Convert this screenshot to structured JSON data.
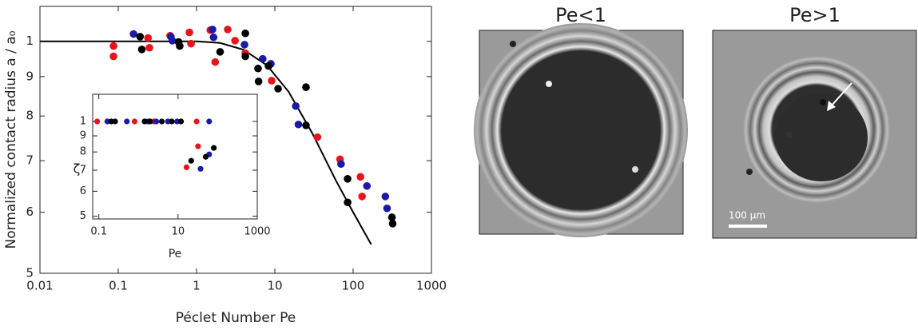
{
  "chart_data": [
    {
      "type": "scatter",
      "xlabel": "Péclet Number Pe",
      "ylabel": "Normalized contact radius a / a₀",
      "xscale": "log",
      "yscale": "log",
      "xlim": [
        0.01,
        1000
      ],
      "ylim": [
        0.5,
        1.11
      ],
      "xticks": [
        0.01,
        0.1,
        1,
        10,
        100,
        1000
      ],
      "yticks": [
        1,
        {
          "value": 0.9,
          "label": "9"
        },
        {
          "value": 0.8,
          "label": "8"
        },
        {
          "value": 0.7,
          "label": "7"
        },
        {
          "value": 0.6,
          "label": "6"
        },
        {
          "value": 0.5,
          "label": "5"
        }
      ],
      "series": [
        {
          "color": "#e8141b",
          "x": [
            0.087,
            0.087,
            0.24,
            0.25,
            0.46,
            0.81,
            0.85,
            1.5,
            1.73,
            2.5,
            3.1,
            4.2,
            9.1,
            35,
            68,
            124,
            130
          ],
          "values": [
            0.986,
            0.956,
            1.01,
            0.981,
            1.017,
            1.027,
            0.993,
            1.034,
            0.94,
            1.036,
            1.002,
            0.965,
            0.889,
            0.751,
            0.703,
            0.667,
            0.629
          ]
        },
        {
          "color": "#1a1aa8",
          "x": [
            0.157,
            0.47,
            0.49,
            1.6,
            1.65,
            4.1,
            7,
            8.9,
            18.5,
            20,
            70,
            150,
            258,
            271
          ],
          "values": [
            1.022,
            1.014,
            1.002,
            1.036,
            1.012,
            0.99,
            0.949,
            0.935,
            0.824,
            0.78,
            0.693,
            0.649,
            0.629,
            0.607
          ]
        },
        {
          "color": "#000000",
          "x": [
            0.19,
            0.2,
            0.59,
            0.61,
            2.0,
            4.2,
            4.2,
            6.1,
            6.2,
            8.3,
            11,
            25,
            25,
            85,
            85,
            313,
            320
          ],
          "values": [
            1.014,
            0.976,
            0.998,
            0.986,
            0.969,
            1.024,
            0.956,
            0.922,
            0.887,
            0.929,
            0.868,
            0.872,
            0.778,
            0.663,
            0.618,
            0.591,
            0.58
          ]
        }
      ],
      "curve": {
        "color": "#000000",
        "x": [
          0.01,
          1,
          2,
          4,
          8,
          15,
          30,
          60,
          100,
          170
        ],
        "values": [
          1,
          1,
          0.995,
          0.975,
          0.93,
          0.86,
          0.76,
          0.66,
          0.6,
          0.545
        ]
      }
    },
    {
      "type": "scatter",
      "xlabel": "Pe",
      "ylabel": "ζ",
      "xscale": "log",
      "yscale": "log",
      "xlim": [
        0.07,
        1000
      ],
      "ylim": [
        0.49,
        1.22
      ],
      "xticks": [
        0.1,
        10,
        1000
      ],
      "yticks": [
        1,
        {
          "value": 0.9,
          "label": "9"
        },
        {
          "value": 0.8,
          "label": "8"
        },
        {
          "value": 0.7,
          "label": "7"
        },
        {
          "value": 0.6,
          "label": "6"
        },
        {
          "value": 0.5,
          "label": "5"
        }
      ],
      "series": [
        {
          "color": "#e8141b",
          "x": [
            0.091,
            0.8,
            2.47,
            29.5,
            16.4,
            32
          ],
          "values": [
            1,
            1,
            1,
            1,
            0.715,
            0.834
          ]
        },
        {
          "color": "#1a1aa8",
          "x": [
            0.164,
            0.51,
            1.72,
            2.83,
            5.55,
            9.5,
            61,
            37,
            61
          ],
          "values": [
            1,
            1,
            1,
            1,
            1,
            1,
            1,
            0.707,
            0.786
          ]
        },
        {
          "color": "#000000",
          "x": [
            0.206,
            0.258,
            1.43,
            1.97,
            3.9,
            6.96,
            11.9,
            21.5,
            50,
            80
          ],
          "values": [
            1,
            1,
            1,
            1,
            1,
            1,
            1,
            0.75,
            0.772,
            0.824
          ]
        }
      ]
    }
  ],
  "panels": [
    {
      "title": "Pe<1"
    },
    {
      "title": "Pe>1",
      "scale_bar": "100 µm"
    }
  ]
}
